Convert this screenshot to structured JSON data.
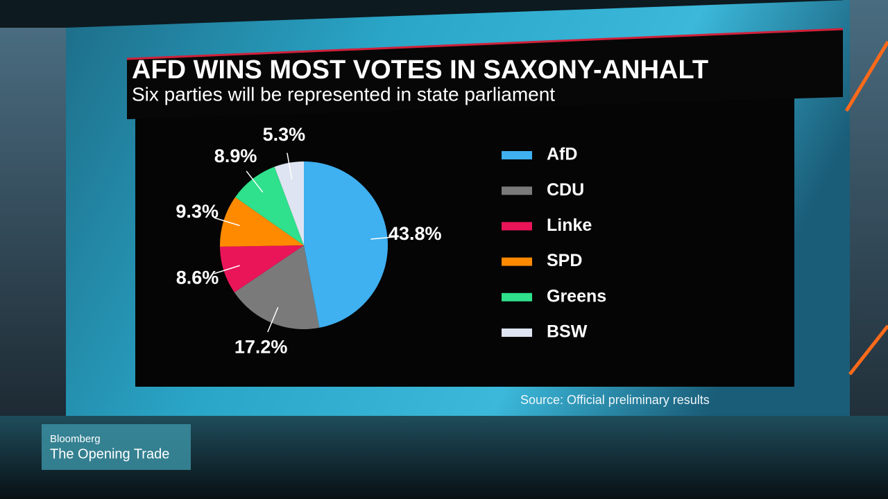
{
  "chart_data": {
    "type": "pie",
    "title": "AFD WINS MOST VOTES IN SAXONY-ANHALT",
    "subtitle": "Six parties will be represented in state parliament",
    "categories": [
      "AfD",
      "CDU",
      "Linke",
      "SPD",
      "Greens",
      "BSW"
    ],
    "values": [
      43.8,
      17.2,
      8.6,
      9.3,
      8.9,
      5.3
    ],
    "value_labels": [
      "43.8%",
      "17.2%",
      "8.6%",
      "9.3%",
      "8.9%",
      "5.3%"
    ],
    "colors": [
      "#3fb0f0",
      "#7a7a7a",
      "#ea1559",
      "#ff8a00",
      "#2fe08c",
      "#dfe4f2"
    ],
    "legend": "right",
    "source": "Source: Official preliminary results"
  },
  "broadcast": {
    "network": "Bloomberg",
    "program": "The Opening Trade"
  }
}
